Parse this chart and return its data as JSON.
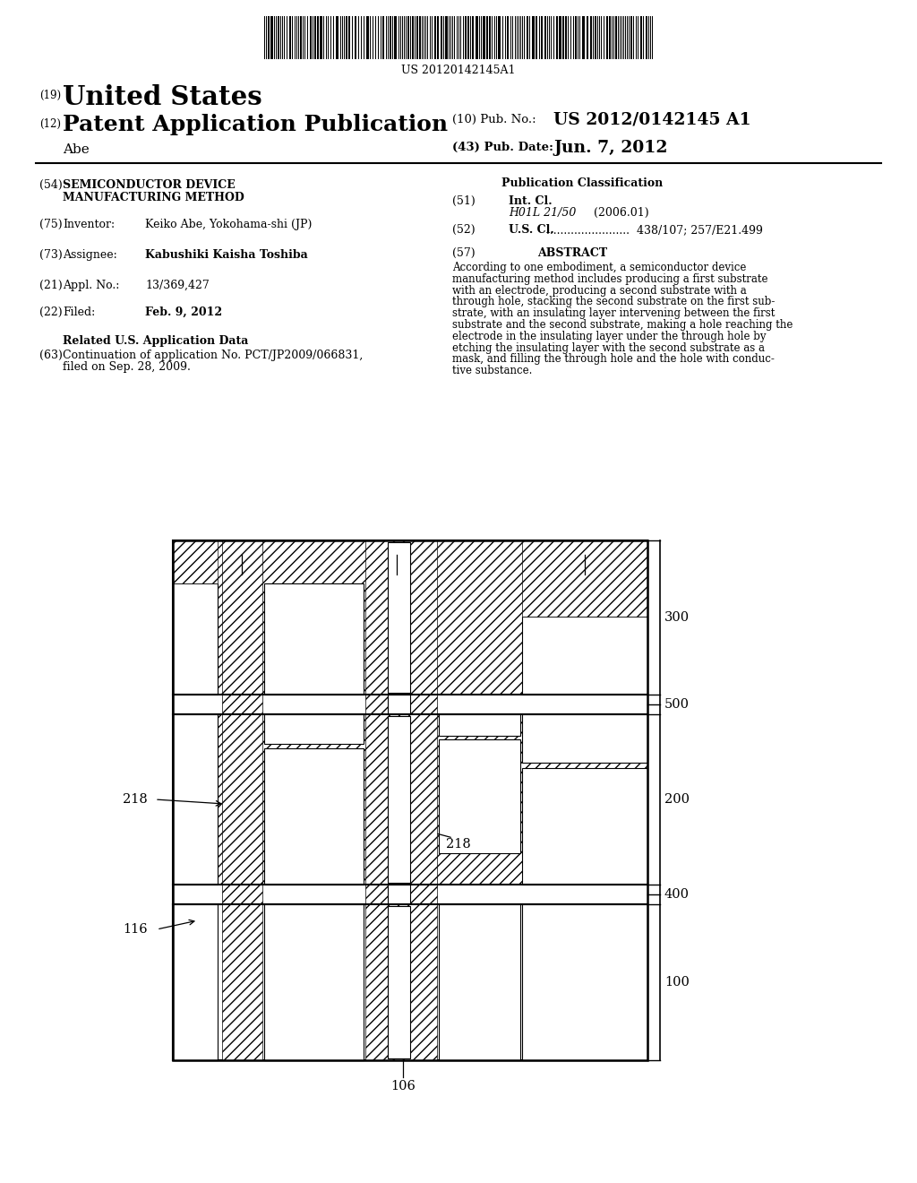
{
  "bg_color": "#ffffff",
  "barcode_text": "US 20120142145A1",
  "title_19": "(19)",
  "title_us": "United States",
  "title_12": "(12)",
  "title_pat": "Patent Application Publication",
  "title_10": "(10) Pub. No.:",
  "pub_no": "US 2012/0142145 A1",
  "title_abe": "Abe",
  "title_43": "(43) Pub. Date:",
  "pub_date": "Jun. 7, 2012",
  "label_54": "(54)",
  "label_75": "(75)",
  "text_75_label": "Inventor:",
  "text_75_val": "Keiko Abe, Yokohama-shi (JP)",
  "label_73": "(73)",
  "text_73_label": "Assignee:",
  "text_73_val": "Kabushiki Kaisha Toshiba",
  "label_21": "(21)",
  "text_21_label": "Appl. No.:",
  "text_21_val": "13/369,427",
  "label_22": "(22)",
  "text_22_label": "Filed:",
  "text_22_val": "Feb. 9, 2012",
  "related_title": "Related U.S. Application Data",
  "label_63": "(63)",
  "text_63a": "Continuation of application No. PCT/JP2009/066831,",
  "text_63b": "filed on Sep. 28, 2009.",
  "pub_class_title": "Publication Classification",
  "label_51": "(51)",
  "text_51_label": "Int. Cl.",
  "text_51_class": "H01L 21/50",
  "text_51_year": "(2006.01)",
  "label_52": "(52)",
  "text_52_label": "U.S. Cl.",
  "text_52_val": "438/107; 257/E21.499",
  "label_57": "(57)",
  "abstract_title": "ABSTRACT",
  "abstract_lines": [
    "According to one embodiment, a semiconductor device",
    "manufacturing method includes producing a first substrate",
    "with an electrode, producing a second substrate with a",
    "through hole, stacking the second substrate on the first sub-",
    "strate, with an insulating layer intervening between the first",
    "substrate and the second substrate, making a hole reaching the",
    "electrode in the insulating layer under the through hole by",
    "etching the insulating layer with the second substrate as a",
    "mask, and filling the through hole and the hole with conduc-",
    "tive substance."
  ]
}
